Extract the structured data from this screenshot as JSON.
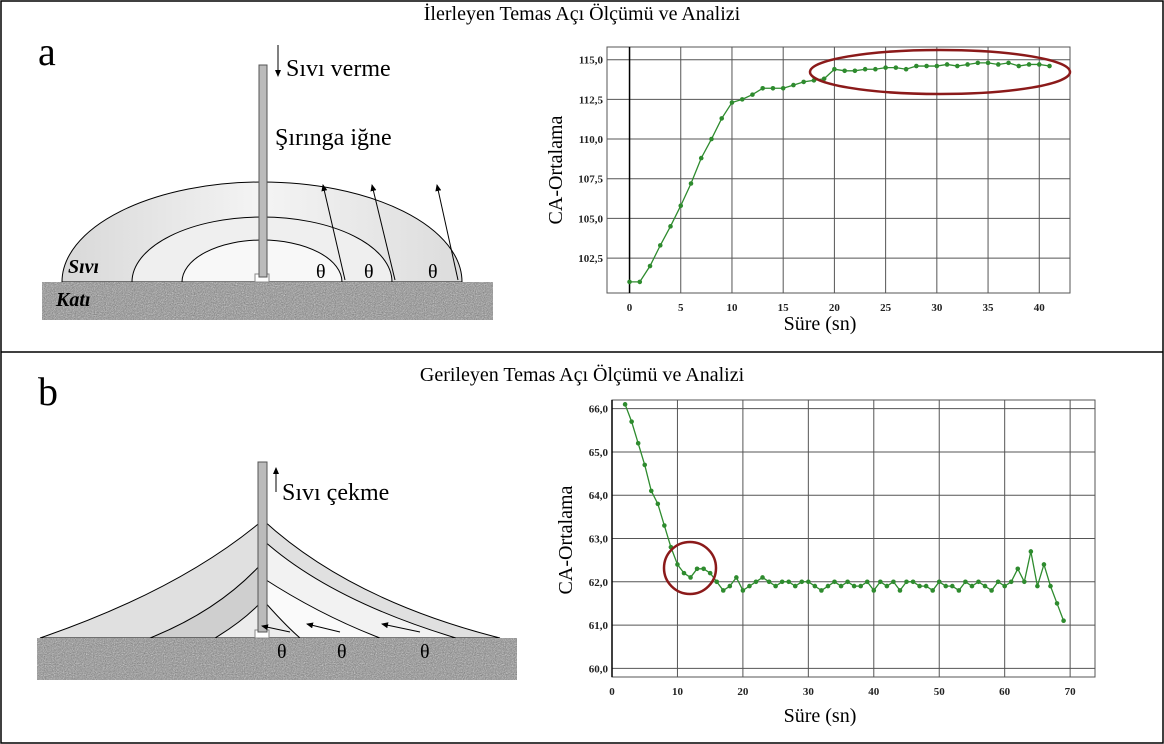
{
  "panels": [
    {
      "label": "a",
      "diagram": {
        "labels": [
          "Sıvı verme",
          "Şırınga iğne",
          "Sıvı",
          "Katı",
          "θ",
          "θ",
          "θ"
        ]
      }
    },
    {
      "label": "b",
      "diagram": {
        "labels": [
          "Sıvı çekme",
          "θ",
          "θ",
          "θ"
        ]
      }
    }
  ],
  "chart_data": [
    {
      "type": "line",
      "title": "İlerleyen Temas Açı Ölçümü ve Analizi",
      "x_label": "Süre (sn)",
      "y_label": "CA-Ortalama",
      "x": [
        0,
        1,
        2,
        3,
        4,
        5,
        6,
        7,
        8,
        9,
        10,
        11,
        12,
        13,
        14,
        15,
        16,
        17,
        18,
        19,
        20,
        21,
        22,
        23,
        24,
        25,
        26,
        27,
        28,
        29,
        30,
        31,
        32,
        33,
        34,
        35,
        36,
        37,
        38,
        39,
        40,
        41
      ],
      "series": [
        {
          "name": "CA-Ortalama",
          "color": "#2e8b2e",
          "values": [
            101.0,
            101.0,
            102.0,
            103.3,
            104.5,
            105.8,
            107.2,
            108.8,
            110.0,
            111.3,
            112.3,
            112.5,
            112.8,
            113.2,
            113.2,
            113.2,
            113.4,
            113.6,
            113.7,
            113.8,
            114.4,
            114.3,
            114.3,
            114.4,
            114.4,
            114.5,
            114.5,
            114.4,
            114.6,
            114.6,
            114.6,
            114.7,
            114.6,
            114.7,
            114.8,
            114.8,
            114.7,
            114.8,
            114.6,
            114.7,
            114.7,
            114.6
          ]
        }
      ],
      "xlim": [
        -2.2,
        43
      ],
      "xticks": [
        0,
        5,
        10,
        15,
        20,
        25,
        30,
        35,
        40
      ],
      "ylim": [
        100.3,
        115.8
      ],
      "yticks": [
        {
          "value": 102.5,
          "label": "102,5"
        },
        {
          "value": 105,
          "label": "105,0"
        },
        {
          "value": 107.5,
          "label": "107,5"
        },
        {
          "value": 110,
          "label": "110,0"
        },
        {
          "value": 112.5,
          "label": "112,5"
        },
        {
          "value": 115,
          "label": "115,0"
        }
      ],
      "grid": true
    },
    {
      "type": "line",
      "title": "Gerileyen Temas Açı Ölçümü ve Analizi",
      "x_label": "Süre (sn)",
      "y_label": "CA-Ortalama",
      "x": [
        2,
        3,
        4,
        5,
        6,
        7,
        8,
        9,
        10,
        11,
        12,
        13,
        14,
        15,
        16,
        17,
        18,
        19,
        20,
        21,
        22,
        23,
        24,
        25,
        26,
        27,
        28,
        29,
        30,
        31,
        32,
        33,
        34,
        35,
        36,
        37,
        38,
        39,
        40,
        41,
        42,
        43,
        44,
        45,
        46,
        47,
        48,
        49,
        50,
        51,
        52,
        53,
        54,
        55,
        56,
        57,
        58,
        59,
        60,
        61,
        62,
        63,
        64,
        65,
        66,
        67,
        68,
        69
      ],
      "series": [
        {
          "name": "CA-Ortalama",
          "color": "#2e8b2e",
          "values": [
            66.1,
            65.7,
            65.2,
            64.7,
            64.1,
            63.8,
            63.3,
            62.8,
            62.4,
            62.2,
            62.1,
            62.3,
            62.3,
            62.2,
            62.0,
            61.8,
            61.9,
            62.1,
            61.8,
            61.9,
            62.0,
            62.1,
            62.0,
            61.9,
            62.0,
            62.0,
            61.9,
            62.0,
            62.0,
            61.9,
            61.8,
            61.9,
            62.0,
            61.9,
            62.0,
            61.9,
            61.9,
            62.0,
            61.8,
            62.0,
            61.9,
            62.0,
            61.8,
            62.0,
            62.0,
            61.9,
            61.9,
            61.8,
            62.0,
            61.9,
            61.9,
            61.8,
            62.0,
            61.9,
            62.0,
            61.9,
            61.8,
            62.0,
            61.9,
            62.0,
            62.3,
            62.0,
            62.7,
            61.9,
            62.4,
            61.9,
            61.5,
            61.1
          ]
        }
      ],
      "xlim": [
        0,
        73.8
      ],
      "xticks": [
        0,
        10,
        20,
        30,
        40,
        50,
        60,
        70
      ],
      "ylim": [
        59.8,
        66.2
      ],
      "yticks": [
        {
          "value": 60,
          "label": "60,0"
        },
        {
          "value": 61,
          "label": "61,0"
        },
        {
          "value": 62,
          "label": "62,0"
        },
        {
          "value": 63,
          "label": "63,0"
        },
        {
          "value": 64,
          "label": "64,0"
        },
        {
          "value": 65,
          "label": "65,0"
        },
        {
          "value": 66,
          "label": "66,0"
        }
      ],
      "grid": true
    }
  ]
}
